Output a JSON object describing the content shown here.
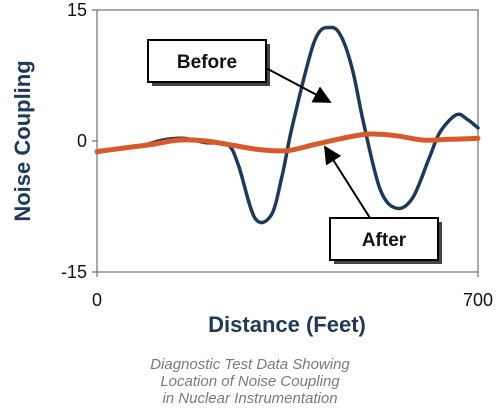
{
  "chart_data": {
    "type": "line",
    "xlabel": "Distance (Feet)",
    "ylabel": "Noise Coupling",
    "xlim": [
      0,
      700
    ],
    "ylim": [
      -15,
      15
    ],
    "x_ticks": [
      "0",
      "700"
    ],
    "y_ticks": [
      "15",
      "0",
      "-15"
    ],
    "grid": false,
    "legend": "none",
    "series": [
      {
        "name": "Before",
        "color": "#1f3a56",
        "x": [
          0,
          40,
          80,
          120,
          160,
          200,
          240,
          260,
          290,
          320,
          340,
          360,
          400,
          430,
          450,
          470,
          490,
          520,
          550,
          580,
          610,
          630,
          660,
          680,
          700
        ],
        "y": [
          -1.3,
          -0.9,
          -0.6,
          0.1,
          0.3,
          -0.2,
          -0.4,
          -2.8,
          -8.8,
          -8.5,
          -4,
          2,
          11.5,
          13,
          11.8,
          8,
          2,
          -5.5,
          -7.7,
          -6.5,
          -2,
          1,
          3,
          2.5,
          1.5
        ]
      },
      {
        "name": "After",
        "color": "#d85a2a",
        "x": [
          0,
          50,
          100,
          150,
          200,
          250,
          300,
          350,
          400,
          450,
          500,
          550,
          600,
          650,
          700
        ],
        "y": [
          -1.2,
          -0.8,
          -0.4,
          0.1,
          0,
          -0.5,
          -1,
          -1.1,
          -0.4,
          0.3,
          0.8,
          0.6,
          0.1,
          0.2,
          0.3
        ]
      }
    ],
    "annotations": [
      {
        "label": "Before",
        "points_to_x": 465
      },
      {
        "label": "After",
        "points_to_x": 500
      }
    ]
  },
  "caption": {
    "line1": "Diagnostic Test Data Showing",
    "line2": "Location of Noise Coupling",
    "line3": "in Nuclear Instrumentation"
  }
}
